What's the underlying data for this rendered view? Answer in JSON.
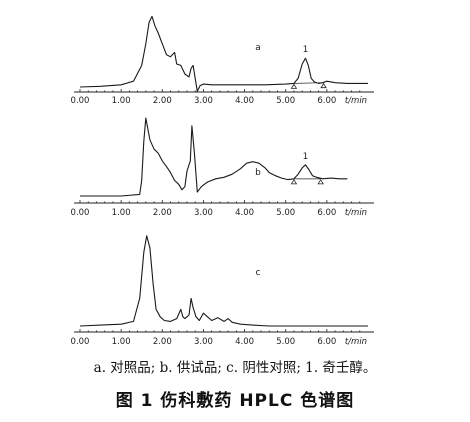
{
  "legend_text": "a. 对照品; b. 供试品; c. 阴性对照; 1. 奇壬醇。",
  "caption": "图 1   伤科敷药 HPLC 色谱图",
  "chart_data": [
    {
      "type": "line",
      "panel_label": "a",
      "xlim": [
        0,
        7.0
      ],
      "x_ticks": [
        "0.00",
        "1.00",
        "2.00",
        "3.00",
        "4.00",
        "5.00",
        "6.00"
      ],
      "x_unit": "t/min",
      "peak_labels": [
        {
          "text": "1",
          "x": 5.48
        }
      ],
      "markers": [
        5.2,
        5.92
      ],
      "series": [
        {
          "x": [
            0.0,
            0.5,
            1.0,
            1.3,
            1.5,
            1.6,
            1.68,
            1.75,
            1.82,
            1.9,
            2.0,
            2.1,
            2.2,
            2.3,
            2.35,
            2.45,
            2.55,
            2.65,
            2.7,
            2.75,
            2.8,
            2.85,
            2.92,
            3.0,
            3.2,
            3.5,
            4.0,
            4.5,
            5.0,
            5.2,
            5.3,
            5.4,
            5.48,
            5.55,
            5.62,
            5.7,
            5.8,
            5.9,
            6.0,
            6.2,
            6.5,
            7.0
          ],
          "y": [
            0.0,
            0.01,
            0.03,
            0.08,
            0.3,
            0.6,
            0.9,
            0.98,
            0.85,
            0.75,
            0.6,
            0.45,
            0.42,
            0.48,
            0.32,
            0.3,
            0.18,
            0.14,
            0.26,
            0.3,
            0.12,
            -0.06,
            0.02,
            0.04,
            0.03,
            0.03,
            0.03,
            0.03,
            0.04,
            0.05,
            0.12,
            0.32,
            0.4,
            0.3,
            0.12,
            0.07,
            0.05,
            0.06,
            0.08,
            0.06,
            0.05,
            0.05
          ]
        }
      ]
    },
    {
      "type": "line",
      "panel_label": "b",
      "xlim": [
        0,
        7.0
      ],
      "x_ticks": [
        "0.00",
        "1.00",
        "2.00",
        "3.00",
        "4.00",
        "5.00",
        "6.00"
      ],
      "x_unit": "t/min",
      "peak_labels": [
        {
          "text": "1",
          "x": 5.48
        }
      ],
      "markers": [
        5.2,
        5.85
      ],
      "series": [
        {
          "x": [
            0.0,
            1.0,
            1.45,
            1.5,
            1.55,
            1.6,
            1.7,
            1.8,
            1.9,
            2.0,
            2.1,
            2.2,
            2.3,
            2.4,
            2.48,
            2.55,
            2.6,
            2.68,
            2.72,
            2.78,
            2.85,
            2.95,
            3.1,
            3.3,
            3.5,
            3.7,
            3.9,
            4.05,
            4.2,
            4.35,
            4.5,
            4.6,
            4.75,
            4.9,
            5.05,
            5.2,
            5.3,
            5.4,
            5.48,
            5.56,
            5.65,
            5.75,
            5.9,
            6.1,
            6.3,
            6.5
          ],
          "y": [
            0.0,
            0.0,
            0.02,
            0.2,
            0.7,
            1.0,
            0.72,
            0.6,
            0.55,
            0.45,
            0.38,
            0.3,
            0.2,
            0.15,
            0.08,
            0.12,
            0.32,
            0.45,
            0.9,
            0.55,
            0.05,
            0.12,
            0.18,
            0.22,
            0.24,
            0.28,
            0.35,
            0.42,
            0.44,
            0.42,
            0.36,
            0.3,
            0.26,
            0.23,
            0.21,
            0.22,
            0.28,
            0.36,
            0.4,
            0.34,
            0.26,
            0.24,
            0.22,
            0.23,
            0.22,
            0.22
          ]
        }
      ]
    },
    {
      "type": "line",
      "panel_label": "c",
      "xlim": [
        0,
        7.0
      ],
      "x_ticks": [
        "0.00",
        "1.00",
        "2.00",
        "3.00",
        "4.00",
        "5.00",
        "6.00"
      ],
      "x_unit": "t/min",
      "series": [
        {
          "x": [
            0.0,
            0.5,
            1.0,
            1.3,
            1.45,
            1.55,
            1.62,
            1.7,
            1.78,
            1.85,
            1.95,
            2.05,
            2.2,
            2.35,
            2.45,
            2.5,
            2.55,
            2.65,
            2.7,
            2.75,
            2.82,
            2.9,
            3.0,
            3.1,
            3.2,
            3.35,
            3.5,
            3.6,
            3.7,
            3.9,
            4.2,
            4.6,
            5.0,
            5.5,
            6.0,
            6.5,
            7.0
          ],
          "y": [
            0.0,
            0.01,
            0.02,
            0.05,
            0.3,
            0.8,
            0.98,
            0.85,
            0.45,
            0.18,
            0.1,
            0.06,
            0.05,
            0.08,
            0.18,
            0.1,
            0.08,
            0.12,
            0.3,
            0.2,
            0.1,
            0.06,
            0.14,
            0.1,
            0.06,
            0.09,
            0.05,
            0.08,
            0.04,
            0.02,
            0.01,
            0.0,
            0.0,
            0.0,
            0.0,
            0.0,
            0.0
          ]
        }
      ]
    }
  ]
}
